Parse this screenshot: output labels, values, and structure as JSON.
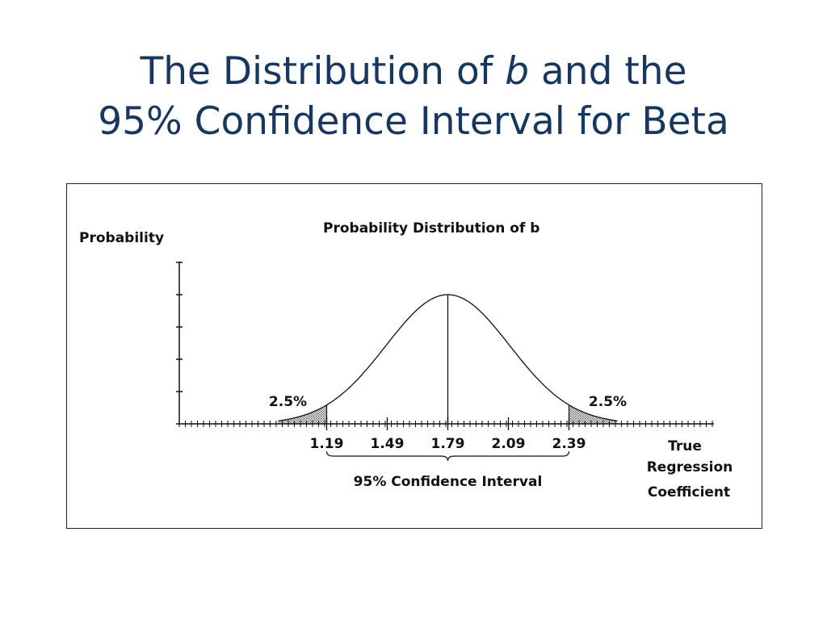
{
  "slide": {
    "title_part1": "The Distribution of ",
    "title_italic": "b",
    "title_part2": " and the",
    "title_line2": "95% Confidence Interval for Beta"
  },
  "colors": {
    "title": "#17375e",
    "ink": "#111111",
    "hatch": "#555555"
  },
  "chart_data": {
    "type": "area",
    "title": "Probability Distribution of b",
    "ylabel": "Probability",
    "xlabel_lines": [
      "True",
      "Regression",
      "Coefficient"
    ],
    "distribution": "normal",
    "mean": 1.79,
    "std_dev": 0.306,
    "x_ticks": [
      1.19,
      1.49,
      1.79,
      2.09,
      2.39
    ],
    "x_tick_labels": [
      "1.19",
      "1.49",
      "1.79",
      "2.09",
      "2.39"
    ],
    "xlim": [
      0.46,
      3.1
    ],
    "y_ticks_count": 5,
    "mean_line_x": 1.79,
    "shaded_tails": [
      {
        "side": "left",
        "upper": 1.19,
        "label": "2.5%"
      },
      {
        "side": "right",
        "lower": 2.39,
        "label": "2.5%"
      }
    ],
    "interval": {
      "lower": 1.19,
      "upper": 2.39,
      "label": "95% Confidence Interval"
    }
  }
}
